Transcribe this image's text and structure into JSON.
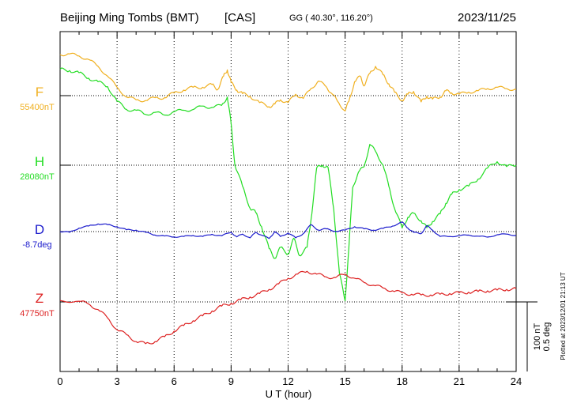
{
  "header": {
    "station": "Beijing Ming Tombs (BMT)",
    "org": "[CAS]",
    "coords": "GG ( 40.30°, 116.20°)",
    "date": "2023/11/25"
  },
  "side_note": "Plotted at 2023/12/01 21:13 UT",
  "scale": {
    "nt": "100 nT",
    "deg": "0.5 deg"
  },
  "chart_data": {
    "type": "line",
    "title": "Beijing Ming Tombs (BMT)",
    "xlabel": "U T (hour)",
    "xlim": [
      0,
      24
    ],
    "xticks": [
      0,
      3,
      6,
      9,
      12,
      15,
      18,
      21,
      24
    ],
    "grid": true,
    "scale_bar": {
      "nT": 100,
      "deg": 0.5
    },
    "series": [
      {
        "name": "F",
        "baseline_label": "55400nT",
        "baseline": 55400,
        "unit": "nT",
        "color": "#f0b020",
        "x": [
          0,
          0.5,
          1,
          1.5,
          2,
          2.5,
          3,
          3.5,
          4,
          4.5,
          5,
          5.5,
          6,
          6.5,
          7,
          7.5,
          8,
          8.3,
          8.6,
          8.8,
          9,
          9.3,
          9.6,
          10,
          10.5,
          11,
          11.3,
          11.6,
          12,
          12.4,
          12.8,
          13.2,
          13.6,
          14,
          14.3,
          14.6,
          15,
          15.2,
          15.5,
          15.8,
          16,
          16.3,
          16.6,
          17,
          17.3,
          17.6,
          18,
          18.3,
          18.6,
          19,
          19.3,
          19.6,
          20,
          20.3,
          20.6,
          21,
          21.5,
          22,
          22.5,
          23,
          23.5,
          24
        ],
        "values": [
          55459,
          55460,
          55457,
          55452,
          55442,
          55428,
          55412,
          55398,
          55394,
          55393,
          55397,
          55397,
          55404,
          55408,
          55412,
          55412,
          55416,
          55409,
          55428,
          55437,
          55419,
          55408,
          55403,
          55399,
          55390,
          55384,
          55388,
          55394,
          55390,
          55402,
          55396,
          55410,
          55421,
          55413,
          55403,
          55392,
          55378,
          55392,
          55420,
          55428,
          55414,
          55432,
          55442,
          55430,
          55417,
          55405,
          55393,
          55402,
          55406,
          55391,
          55399,
          55395,
          55398,
          55407,
          55404,
          55402,
          55405,
          55407,
          55410,
          55412,
          55410,
          55409
        ]
      },
      {
        "name": "H",
        "baseline_label": "28080nT",
        "baseline": 28080,
        "unit": "nT",
        "color": "#22dd22",
        "x": [
          0,
          0.5,
          1,
          1.5,
          2,
          2.5,
          3,
          3.5,
          4,
          4.5,
          5,
          5.5,
          6,
          6.5,
          7,
          7.5,
          8,
          8.5,
          8.8,
          9,
          9.2,
          9.6,
          10,
          10.3,
          10.6,
          11,
          11.3,
          11.6,
          12,
          12.3,
          12.6,
          13,
          13.2,
          13.5,
          13.8,
          14.1,
          14.4,
          14.7,
          15,
          15.2,
          15.4,
          15.7,
          16,
          16.3,
          16.6,
          17,
          17.3,
          17.6,
          18,
          18.3,
          18.6,
          19,
          19.3,
          19.6,
          20,
          20.3,
          20.6,
          21,
          21.5,
          22,
          22.5,
          23,
          23.5,
          24
        ],
        "values": [
          28218,
          28216,
          28213,
          28205,
          28200,
          28193,
          28172,
          28160,
          28159,
          28153,
          28156,
          28152,
          28157,
          28159,
          28160,
          28165,
          28163,
          28166,
          28178,
          28140,
          28080,
          28050,
          28018,
          28012,
          27992,
          27960,
          27946,
          27962,
          27952,
          27975,
          27950,
          27962,
          28000,
          28076,
          28080,
          28077,
          28017,
          27925,
          27885,
          27962,
          28048,
          28070,
          28078,
          28110,
          28100,
          28080,
          28050,
          28018,
          27990,
          28005,
          28011,
          28000,
          27990,
          27999,
          28010,
          28025,
          28038,
          28045,
          28050,
          28060,
          28076,
          28085,
          28078,
          28080
        ]
      },
      {
        "name": "D",
        "baseline_label": "-8.7deg",
        "baseline": -8.7,
        "unit": "deg",
        "color": "#1a1acc",
        "x": [
          0,
          0.5,
          1,
          1.5,
          2,
          2.5,
          3,
          3.5,
          4,
          4.5,
          5,
          5.5,
          6,
          6.5,
          7,
          7.5,
          8,
          8.5,
          9,
          9.3,
          9.6,
          10,
          10.3,
          10.6,
          11,
          11.3,
          11.6,
          12,
          12.4,
          12.8,
          13.2,
          13.6,
          14,
          14.5,
          15,
          15.5,
          16,
          16.5,
          17,
          17.5,
          18,
          18.3,
          18.6,
          19,
          19.3,
          19.6,
          20,
          20.5,
          21,
          21.5,
          22,
          22.5,
          23,
          23.5,
          24
        ],
        "values": [
          -8.7,
          -8.705,
          -8.675,
          -8.66,
          -8.645,
          -8.65,
          -8.665,
          -8.687,
          -8.69,
          -8.705,
          -8.725,
          -8.732,
          -8.738,
          -8.735,
          -8.728,
          -8.735,
          -8.72,
          -8.73,
          -8.705,
          -8.738,
          -8.718,
          -8.745,
          -8.705,
          -8.725,
          -8.75,
          -8.7,
          -8.735,
          -8.71,
          -8.745,
          -8.715,
          -8.65,
          -8.69,
          -8.68,
          -8.698,
          -8.69,
          -8.665,
          -8.68,
          -8.69,
          -8.677,
          -8.66,
          -8.632,
          -8.675,
          -8.705,
          -8.715,
          -8.657,
          -8.69,
          -8.735,
          -8.735,
          -8.73,
          -8.725,
          -8.733,
          -8.74,
          -8.723,
          -8.718,
          -8.728
        ]
      },
      {
        "name": "Z",
        "baseline_label": "47750nT",
        "baseline": 47750,
        "unit": "nT",
        "color": "#dd2222",
        "x": [
          0,
          1,
          1.5,
          2,
          2.5,
          3,
          3.5,
          4,
          4.5,
          5,
          5.5,
          6,
          6.5,
          7,
          7.5,
          8,
          8.5,
          9,
          9.5,
          10,
          10.5,
          11,
          11.5,
          12,
          12.5,
          13,
          13.5,
          14,
          14.5,
          15,
          15.5,
          16,
          16.5,
          17,
          17.5,
          18,
          18.5,
          19,
          19.5,
          20,
          20.5,
          21,
          21.5,
          22,
          22.5,
          23,
          23.5,
          24
        ],
        "values": [
          47752,
          47751,
          47747,
          47739,
          47727,
          47710,
          47703,
          47693,
          47690,
          47693,
          47700,
          47708,
          47716,
          47723,
          47730,
          47737,
          47744,
          47748,
          47753,
          47757,
          47762,
          47768,
          47776,
          47784,
          47790,
          47794,
          47790,
          47786,
          47785,
          47790,
          47784,
          47778,
          47774,
          47770,
          47766,
          47763,
          47761,
          47760,
          47760,
          47761,
          47762,
          47763,
          47764,
          47765,
          47766,
          47767,
          47768,
          47769
        ]
      }
    ]
  }
}
